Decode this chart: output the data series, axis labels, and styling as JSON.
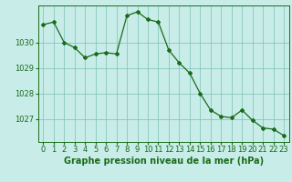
{
  "hours": [
    0,
    1,
    2,
    3,
    4,
    5,
    6,
    7,
    8,
    9,
    10,
    11,
    12,
    13,
    14,
    15,
    16,
    17,
    18,
    19,
    20,
    21,
    22,
    23
  ],
  "pressure": [
    1030.7,
    1030.8,
    1030.0,
    1029.8,
    1029.4,
    1029.55,
    1029.6,
    1029.55,
    1031.05,
    1031.2,
    1030.9,
    1030.8,
    1029.7,
    1029.2,
    1028.8,
    1028.0,
    1027.35,
    1027.1,
    1027.05,
    1027.35,
    1026.95,
    1026.65,
    1026.6,
    1026.35
  ],
  "line_color": "#1a6b1a",
  "marker": "D",
  "markersize": 2.0,
  "linewidth": 0.9,
  "bg_color": "#c8ece8",
  "grid_color": "#7dbfb8",
  "ylabel_ticks": [
    1027,
    1028,
    1029,
    1030
  ],
  "xlabel": "Graphe pression niveau de la mer (hPa)",
  "xlabel_color": "#1a6b1a",
  "xlabel_fontsize": 7.0,
  "tick_color": "#1a6b1a",
  "tick_fontsize": 6.0,
  "ylim": [
    1026.1,
    1031.45
  ],
  "xlim": [
    -0.5,
    23.5
  ]
}
